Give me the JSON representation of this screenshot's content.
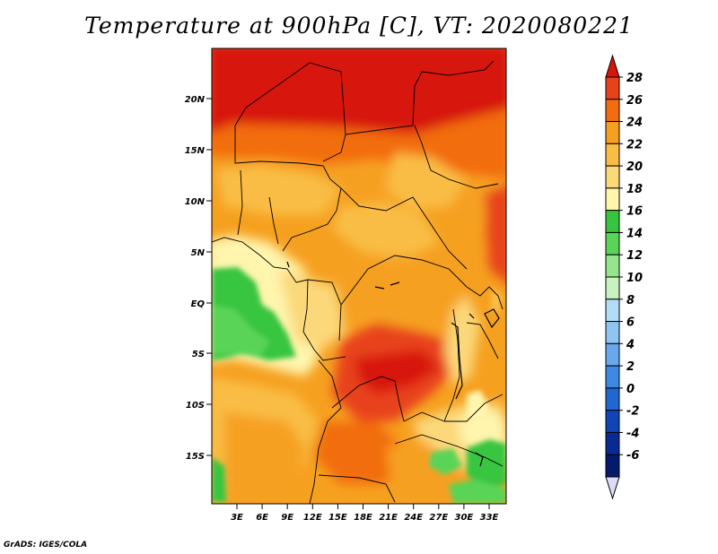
{
  "title": "Temperature at 900hPa [C], VT: 2020080221",
  "credit": "GrADS: IGES/COLA",
  "map": {
    "lat_ticks": [
      "20N",
      "15N",
      "10N",
      "5N",
      "EQ",
      "5S",
      "10S",
      "15S"
    ],
    "lon_ticks": [
      "3E",
      "6E",
      "9E",
      "12E",
      "15E",
      "18E",
      "21E",
      "24E",
      "27E",
      "30E",
      "33E"
    ]
  },
  "colorbar": {
    "labels": [
      "28",
      "26",
      "24",
      "22",
      "20",
      "18",
      "16",
      "14",
      "12",
      "10",
      "8",
      "6",
      "4",
      "2",
      "0",
      "-2",
      "-4",
      "-6"
    ],
    "colors": [
      "#d7160b",
      "#e8421a",
      "#f26d0f",
      "#f6a020",
      "#f9bd45",
      "#fbd879",
      "#fff5ad",
      "#37c53f",
      "#5ad456",
      "#96e48b",
      "#c8f3c0",
      "#b3dcf6",
      "#8ec5f2",
      "#67a9ec",
      "#3e8ae3",
      "#1f68d2",
      "#1144b5",
      "#0a2a93",
      "#061a6b",
      "#dcdcf6"
    ]
  }
}
